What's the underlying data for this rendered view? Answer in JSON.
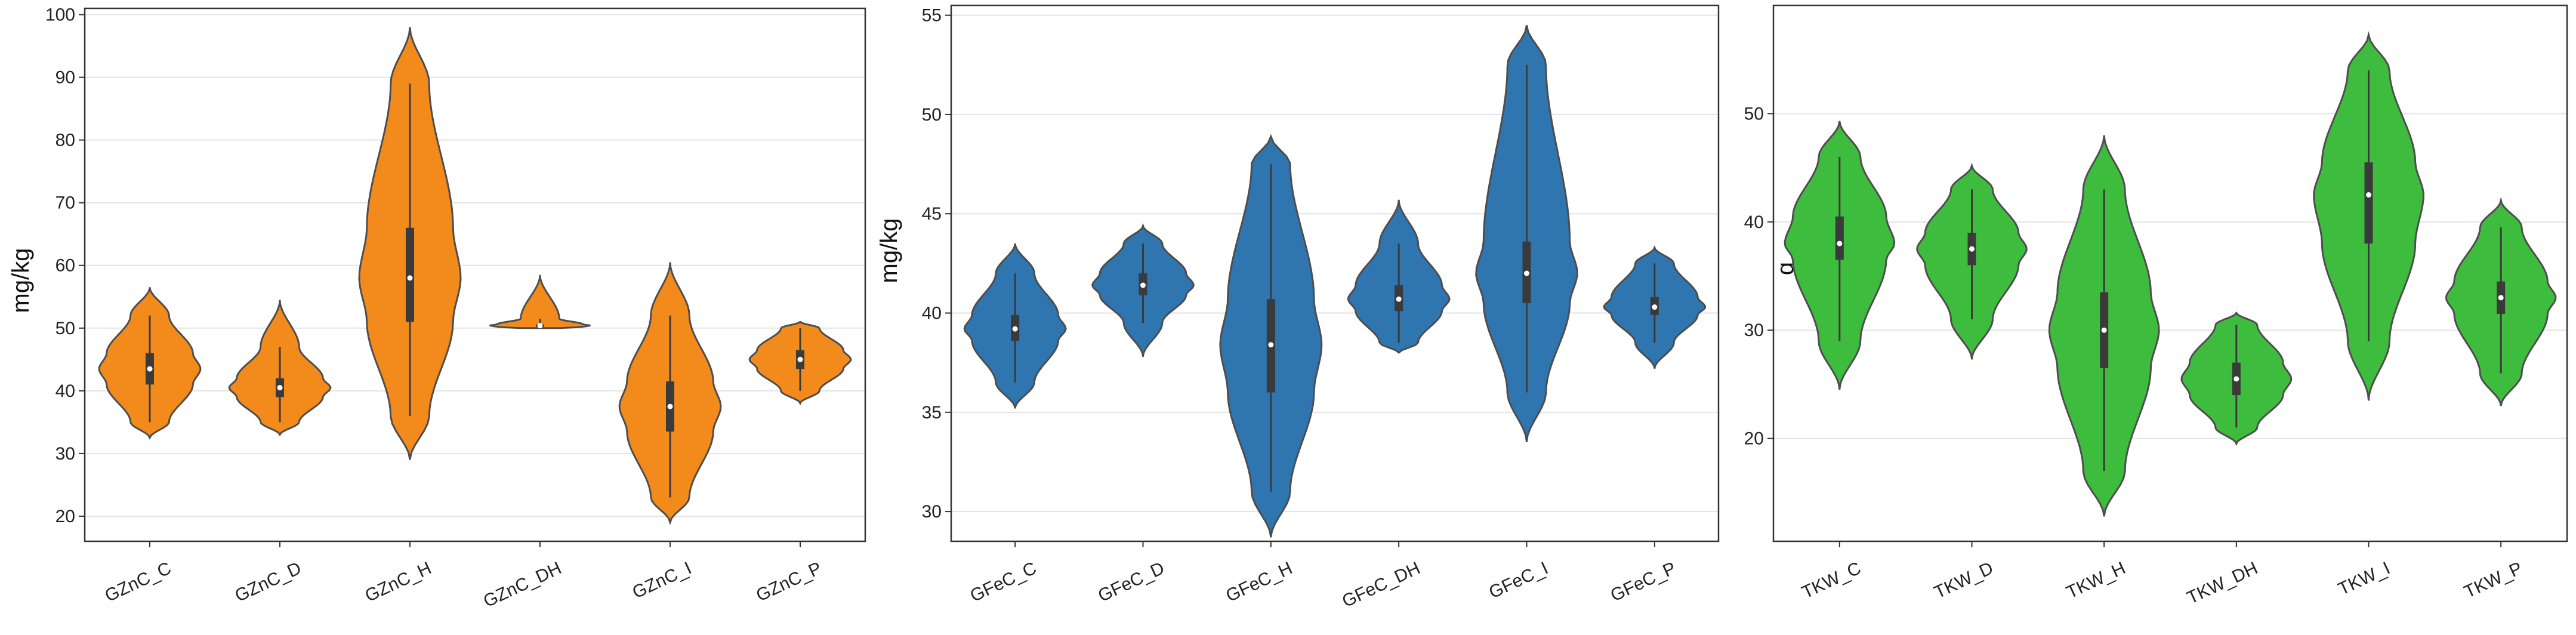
{
  "chart_data": [
    {
      "type": "violin",
      "ylabel": "mg/kg",
      "ylim": [
        16,
        101
      ],
      "yticks": [
        20,
        30,
        40,
        50,
        60,
        70,
        80,
        90,
        100
      ],
      "grid": true,
      "color": "#f28a1c",
      "categories": [
        "GZnC_C",
        "GZnC_D",
        "GZnC_H",
        "GZnC_DH",
        "GZnC_I",
        "GZnC_P"
      ],
      "stats": [
        {
          "min": 32.5,
          "q1": 41.0,
          "median": 43.5,
          "q3": 46.0,
          "max": 56.5,
          "wmin": 35,
          "wmax": 52
        },
        {
          "min": 33.0,
          "q1": 39.0,
          "median": 40.5,
          "q3": 42.0,
          "max": 54.5,
          "wmin": 35,
          "wmax": 47
        },
        {
          "min": 29.0,
          "q1": 51.0,
          "median": 58.0,
          "q3": 66.0,
          "max": 98.0,
          "wmin": 36,
          "wmax": 89
        },
        {
          "min": 50.0,
          "q1": 50.2,
          "median": 50.4,
          "q3": 50.6,
          "max": 58.5,
          "wmin": 50,
          "wmax": 51.5
        },
        {
          "min": 19.0,
          "q1": 33.5,
          "median": 37.5,
          "q3": 41.5,
          "max": 60.5,
          "wmin": 23,
          "wmax": 52
        },
        {
          "min": 38.0,
          "q1": 43.5,
          "median": 45.0,
          "q3": 46.5,
          "max": 51.0,
          "wmin": 40,
          "wmax": 50
        }
      ]
    },
    {
      "type": "violin",
      "ylabel": "mg/kg",
      "ylim": [
        28.5,
        55.5
      ],
      "yticks": [
        30,
        35,
        40,
        45,
        50,
        55
      ],
      "grid": true,
      "color": "#2f75b0",
      "categories": [
        "GFeC_C",
        "GFeC_D",
        "GFeC_H",
        "GFeC_DH",
        "GFeC_I",
        "GFeC_P"
      ],
      "stats": [
        {
          "min": 35.2,
          "q1": 38.6,
          "median": 39.2,
          "q3": 39.9,
          "max": 43.5,
          "wmin": 36.5,
          "wmax": 42
        },
        {
          "min": 37.8,
          "q1": 40.9,
          "median": 41.4,
          "q3": 42.0,
          "max": 44.4,
          "wmin": 39.5,
          "wmax": 43.5
        },
        {
          "min": 28.7,
          "q1": 36.0,
          "median": 38.4,
          "q3": 40.7,
          "max": 48.9,
          "wmin": 31,
          "wmax": 47.5
        },
        {
          "min": 38.0,
          "q1": 40.1,
          "median": 40.7,
          "q3": 41.4,
          "max": 45.7,
          "wmin": 38.5,
          "wmax": 43.5
        },
        {
          "min": 33.5,
          "q1": 40.5,
          "median": 42.0,
          "q3": 43.6,
          "max": 54.5,
          "wmin": 36,
          "wmax": 52.5
        },
        {
          "min": 37.2,
          "q1": 39.9,
          "median": 40.3,
          "q3": 40.8,
          "max": 43.3,
          "wmin": 38.5,
          "wmax": 42.5
        }
      ]
    },
    {
      "type": "violin",
      "ylabel": "g",
      "ylim": [
        10.5,
        60
      ],
      "yticks": [
        20,
        30,
        40,
        50
      ],
      "grid": true,
      "color": "#3ebc3e",
      "categories": [
        "TKW_C",
        "TKW_D",
        "TKW_H",
        "TKW_DH",
        "TKW_I",
        "TKW_P"
      ],
      "stats": [
        {
          "min": 24.5,
          "q1": 36.5,
          "median": 38.0,
          "q3": 40.5,
          "max": 49.3,
          "wmin": 29,
          "wmax": 46
        },
        {
          "min": 27.3,
          "q1": 36.0,
          "median": 37.5,
          "q3": 39.0,
          "max": 45.2,
          "wmin": 31,
          "wmax": 43
        },
        {
          "min": 12.8,
          "q1": 26.5,
          "median": 30.0,
          "q3": 33.5,
          "max": 48.0,
          "wmin": 17,
          "wmax": 43
        },
        {
          "min": 19.5,
          "q1": 24.0,
          "median": 25.5,
          "q3": 27.0,
          "max": 31.6,
          "wmin": 21,
          "wmax": 30.5
        },
        {
          "min": 23.5,
          "q1": 38.0,
          "median": 42.5,
          "q3": 45.5,
          "max": 57.3,
          "wmin": 29,
          "wmax": 54
        },
        {
          "min": 23.0,
          "q1": 31.5,
          "median": 33.0,
          "q3": 34.5,
          "max": 42.0,
          "wmin": 26,
          "wmax": 39.5
        }
      ]
    }
  ]
}
